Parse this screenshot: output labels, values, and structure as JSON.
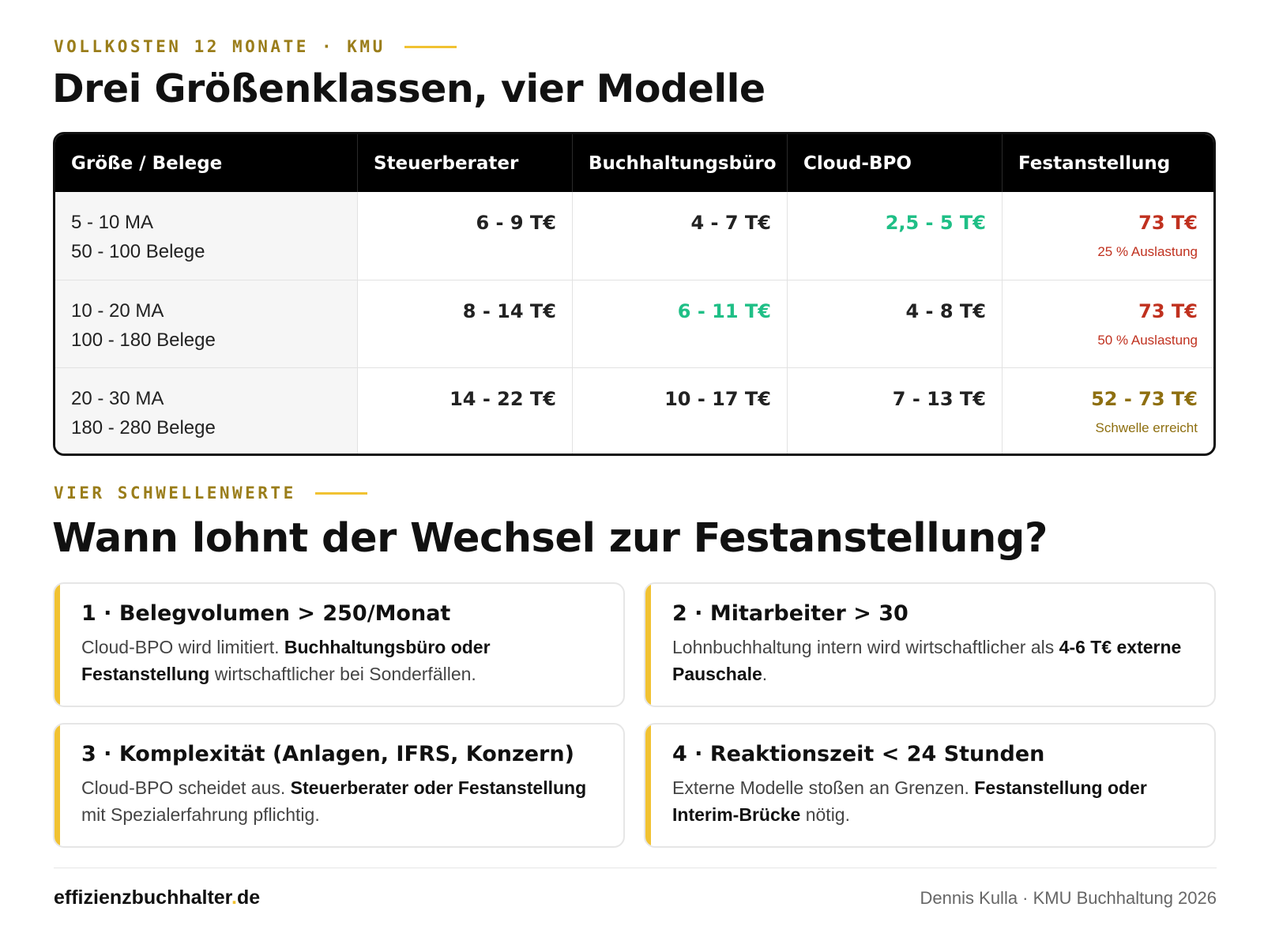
{
  "section1": {
    "eyebrow": "VOLLKOSTEN 12 MONATE · KMU",
    "title": "Drei Größenklassen, vier Modelle"
  },
  "table": {
    "headers": [
      "Größe / Belege",
      "Steuerberater",
      "Buchhaltungsbüro",
      "Cloud-BPO",
      "Festanstellung"
    ],
    "rows": [
      {
        "size": "5 - 10 MA",
        "belege": "50 - 100 Belege",
        "cells": [
          "6 - 9 T€",
          "4 - 7 T€",
          "2,5 - 5 T€"
        ],
        "fest": "73 T€",
        "fest_note": "25 % Auslastung"
      },
      {
        "size": "10 - 20 MA",
        "belege": "100 - 180 Belege",
        "cells": [
          "8 - 14 T€",
          "6 - 11 T€",
          "4 - 8 T€"
        ],
        "fest": "73 T€",
        "fest_note": "50 % Auslastung"
      },
      {
        "size": "20 - 30 MA",
        "belege": "180 - 280 Belege",
        "cells": [
          "14 - 22 T€",
          "10 - 17 T€",
          "7 - 13 T€"
        ],
        "fest": "52 - 73 T€",
        "fest_note": "Schwelle erreicht"
      }
    ]
  },
  "colors": {
    "accent": "#f1c232",
    "eyebrow": "#9a7d1a",
    "green": "#1fbf86",
    "red": "#c0311f",
    "gold": "#8e6f10"
  },
  "section2": {
    "eyebrow": "VIER SCHWELLENWERTE",
    "title": "Wann lohnt der Wechsel zur Festanstellung?"
  },
  "cards": [
    {
      "title": "1 · Belegvolumen > 250/Monat",
      "t1": "Cloud-BPO wird limitiert. ",
      "b1": "Buchhaltungsbüro oder Festanstellung",
      "t2": " wirtschaftlicher bei Sonderfällen."
    },
    {
      "title": "2 · Mitarbeiter > 30",
      "t1": "Lohnbuchhaltung intern wird wirtschaftlicher als ",
      "b1": "4-6 T€ externe Pauschale",
      "t2": "."
    },
    {
      "title": "3 · Komplexität (Anlagen, IFRS, Konzern)",
      "t1": "Cloud-BPO scheidet aus. ",
      "b1": "Steuerberater oder Festanstellung",
      "t2": " mit Spezialerfahrung pflichtig."
    },
    {
      "title": "4 · Reaktionszeit < 24 Stunden",
      "t1": "Externe Modelle stoßen an Grenzen. ",
      "b1": "Festanstellung oder Interim-Brücke",
      "t2": " nötig."
    }
  ],
  "footer": {
    "site_name": "effizienzbuchhalter",
    "site_dot": ".",
    "site_tld": "de",
    "credit": "Dennis Kulla · KMU Buchhaltung 2026"
  }
}
